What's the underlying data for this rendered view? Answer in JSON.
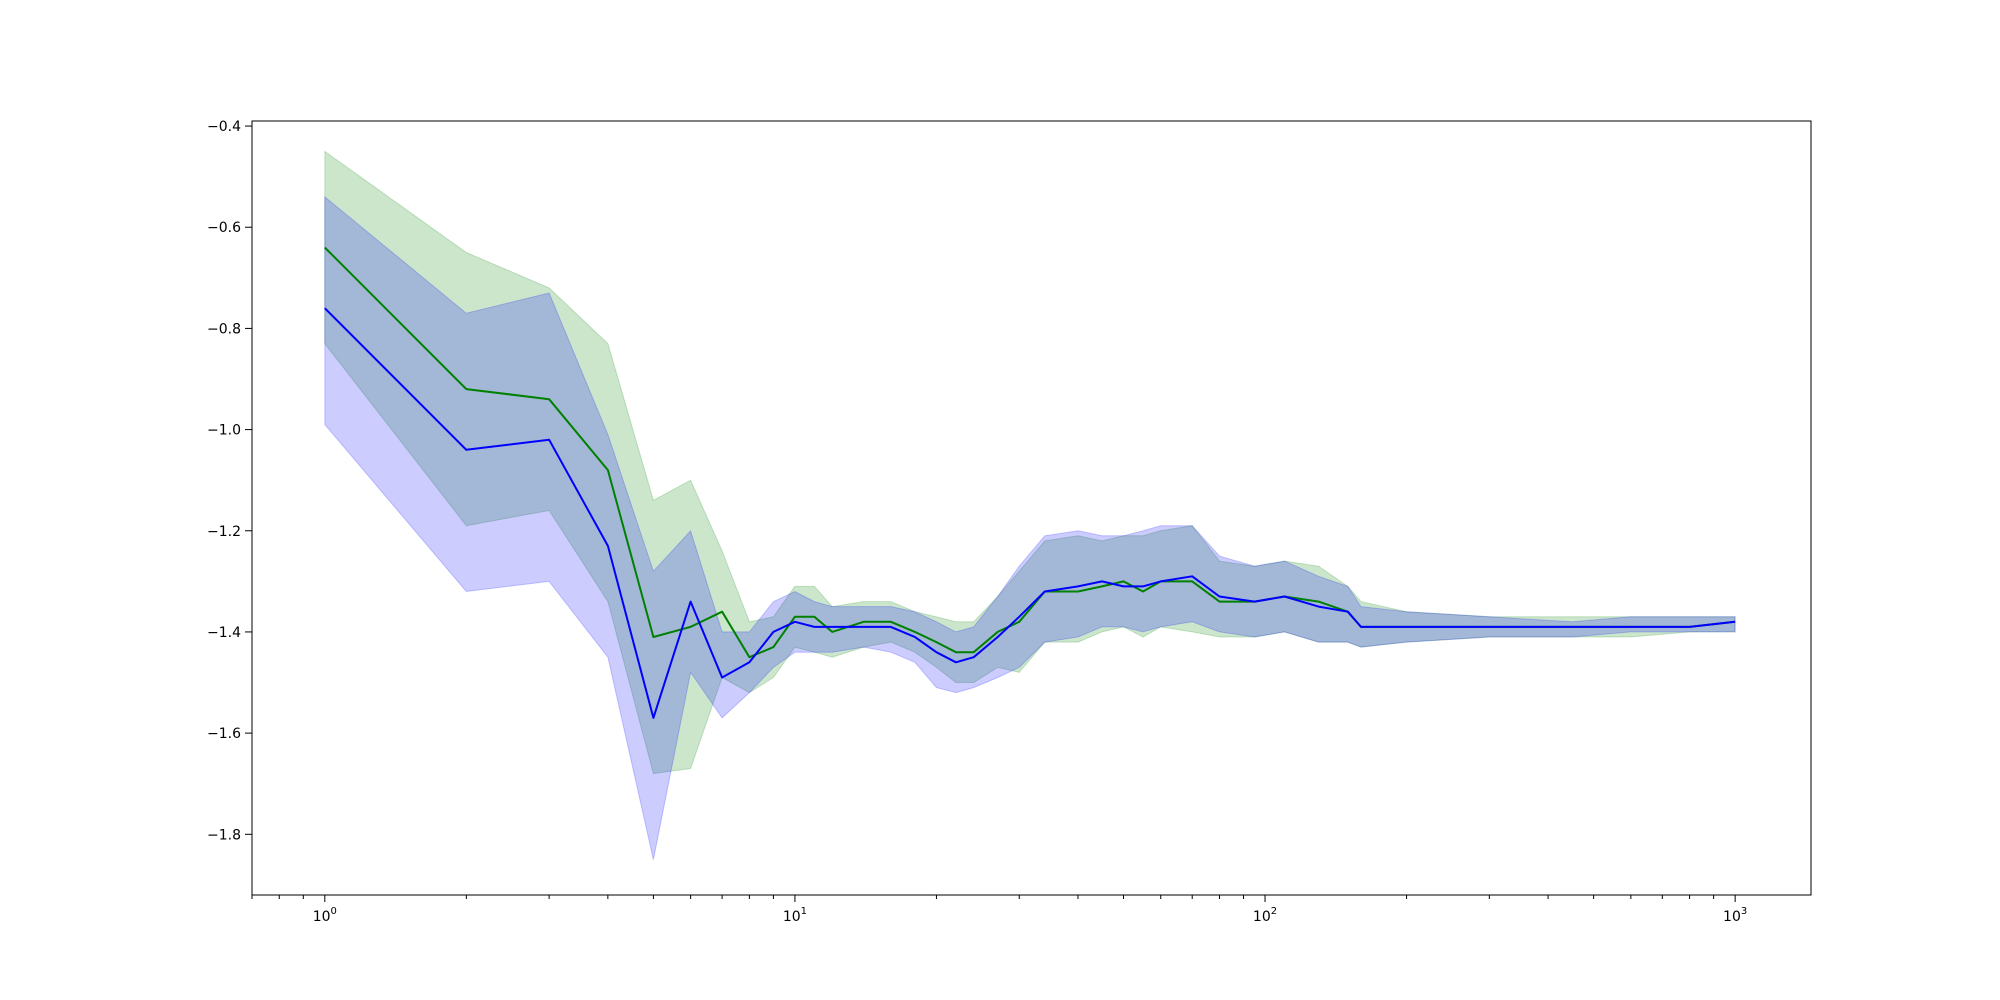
{
  "chart_data": {
    "type": "line",
    "title": "",
    "xlabel": "",
    "ylabel": "",
    "xscale": "log",
    "xlim": [
      0.7,
      1450
    ],
    "ylim": [
      -1.92,
      -0.39
    ],
    "grid": false,
    "x_ticks": [
      {
        "value": 1,
        "base": "10",
        "exp": "0"
      },
      {
        "value": 10,
        "base": "10",
        "exp": "1"
      },
      {
        "value": 100,
        "base": "10",
        "exp": "2"
      },
      {
        "value": 1000,
        "base": "10",
        "exp": "3"
      }
    ],
    "y_ticks": [
      {
        "value": -0.4,
        "label": "−0.4"
      },
      {
        "value": -0.6,
        "label": "−0.6"
      },
      {
        "value": -0.8,
        "label": "−0.8"
      },
      {
        "value": -1.0,
        "label": "−1.0"
      },
      {
        "value": -1.2,
        "label": "−1.2"
      },
      {
        "value": -1.4,
        "label": "−1.4"
      },
      {
        "value": -1.6,
        "label": "−1.6"
      },
      {
        "value": -1.8,
        "label": "−1.8"
      }
    ],
    "series": [
      {
        "color": "#008000",
        "band_color": "#008000",
        "band_opacity": 0.2,
        "points": [
          [
            1,
            -0.64,
            -0.45,
            -0.83
          ],
          [
            2,
            -0.92,
            -0.65,
            -1.19
          ],
          [
            3,
            -0.94,
            -0.72,
            -1.16
          ],
          [
            4,
            -1.08,
            -0.83,
            -1.34
          ],
          [
            5,
            -1.41,
            -1.14,
            -1.68
          ],
          [
            6,
            -1.39,
            -1.1,
            -1.67
          ],
          [
            7,
            -1.36,
            -1.24,
            -1.49
          ],
          [
            8,
            -1.45,
            -1.38,
            -1.52
          ],
          [
            9,
            -1.43,
            -1.37,
            -1.49
          ],
          [
            10,
            -1.37,
            -1.31,
            -1.43
          ],
          [
            11,
            -1.37,
            -1.31,
            -1.44
          ],
          [
            12,
            -1.4,
            -1.35,
            -1.45
          ],
          [
            14,
            -1.38,
            -1.34,
            -1.43
          ],
          [
            16,
            -1.38,
            -1.34,
            -1.42
          ],
          [
            18,
            -1.4,
            -1.36,
            -1.44
          ],
          [
            20,
            -1.42,
            -1.37,
            -1.47
          ],
          [
            22,
            -1.44,
            -1.38,
            -1.5
          ],
          [
            24,
            -1.44,
            -1.38,
            -1.5
          ],
          [
            27,
            -1.4,
            -1.33,
            -1.47
          ],
          [
            30,
            -1.38,
            -1.28,
            -1.48
          ],
          [
            34,
            -1.32,
            -1.22,
            -1.42
          ],
          [
            40,
            -1.32,
            -1.21,
            -1.42
          ],
          [
            45,
            -1.31,
            -1.22,
            -1.4
          ],
          [
            50,
            -1.3,
            -1.21,
            -1.39
          ],
          [
            55,
            -1.32,
            -1.21,
            -1.41
          ],
          [
            60,
            -1.3,
            -1.2,
            -1.39
          ],
          [
            70,
            -1.3,
            -1.19,
            -1.4
          ],
          [
            80,
            -1.34,
            -1.26,
            -1.41
          ],
          [
            95,
            -1.34,
            -1.27,
            -1.41
          ],
          [
            110,
            -1.33,
            -1.26,
            -1.4
          ],
          [
            130,
            -1.34,
            -1.27,
            -1.42
          ],
          [
            150,
            -1.36,
            -1.31,
            -1.42
          ],
          [
            160,
            -1.39,
            -1.34,
            -1.43
          ],
          [
            200,
            -1.39,
            -1.36,
            -1.42
          ],
          [
            300,
            -1.39,
            -1.37,
            -1.41
          ],
          [
            450,
            -1.39,
            -1.37,
            -1.41
          ],
          [
            600,
            -1.39,
            -1.37,
            -1.41
          ],
          [
            800,
            -1.39,
            -1.37,
            -1.4
          ],
          [
            1000,
            -1.38,
            -1.37,
            -1.4
          ]
        ]
      },
      {
        "color": "#0000ff",
        "band_color": "#0000ff",
        "band_opacity": 0.2,
        "points": [
          [
            1,
            -0.76,
            -0.54,
            -0.99
          ],
          [
            2,
            -1.04,
            -0.77,
            -1.32
          ],
          [
            3,
            -1.02,
            -0.73,
            -1.3
          ],
          [
            4,
            -1.23,
            -1.01,
            -1.45
          ],
          [
            5,
            -1.57,
            -1.28,
            -1.85
          ],
          [
            6,
            -1.34,
            -1.2,
            -1.48
          ],
          [
            7,
            -1.49,
            -1.4,
            -1.57
          ],
          [
            8,
            -1.46,
            -1.4,
            -1.52
          ],
          [
            9,
            -1.4,
            -1.34,
            -1.47
          ],
          [
            10,
            -1.38,
            -1.32,
            -1.44
          ],
          [
            11,
            -1.39,
            -1.34,
            -1.44
          ],
          [
            12,
            -1.39,
            -1.35,
            -1.44
          ],
          [
            14,
            -1.39,
            -1.35,
            -1.43
          ],
          [
            16,
            -1.39,
            -1.35,
            -1.44
          ],
          [
            18,
            -1.41,
            -1.36,
            -1.46
          ],
          [
            20,
            -1.44,
            -1.38,
            -1.51
          ],
          [
            22,
            -1.46,
            -1.4,
            -1.52
          ],
          [
            24,
            -1.45,
            -1.39,
            -1.51
          ],
          [
            27,
            -1.41,
            -1.33,
            -1.49
          ],
          [
            30,
            -1.37,
            -1.27,
            -1.47
          ],
          [
            34,
            -1.32,
            -1.21,
            -1.42
          ],
          [
            40,
            -1.31,
            -1.2,
            -1.41
          ],
          [
            45,
            -1.3,
            -1.21,
            -1.39
          ],
          [
            50,
            -1.31,
            -1.21,
            -1.39
          ],
          [
            55,
            -1.31,
            -1.2,
            -1.4
          ],
          [
            60,
            -1.3,
            -1.19,
            -1.39
          ],
          [
            70,
            -1.29,
            -1.19,
            -1.38
          ],
          [
            80,
            -1.33,
            -1.25,
            -1.4
          ],
          [
            95,
            -1.34,
            -1.27,
            -1.41
          ],
          [
            110,
            -1.33,
            -1.26,
            -1.4
          ],
          [
            130,
            -1.35,
            -1.29,
            -1.42
          ],
          [
            150,
            -1.36,
            -1.31,
            -1.42
          ],
          [
            160,
            -1.39,
            -1.35,
            -1.43
          ],
          [
            200,
            -1.39,
            -1.36,
            -1.42
          ],
          [
            300,
            -1.39,
            -1.37,
            -1.41
          ],
          [
            450,
            -1.39,
            -1.38,
            -1.41
          ],
          [
            600,
            -1.39,
            -1.37,
            -1.4
          ],
          [
            800,
            -1.39,
            -1.37,
            -1.4
          ],
          [
            1000,
            -1.38,
            -1.37,
            -1.4
          ]
        ]
      }
    ]
  }
}
